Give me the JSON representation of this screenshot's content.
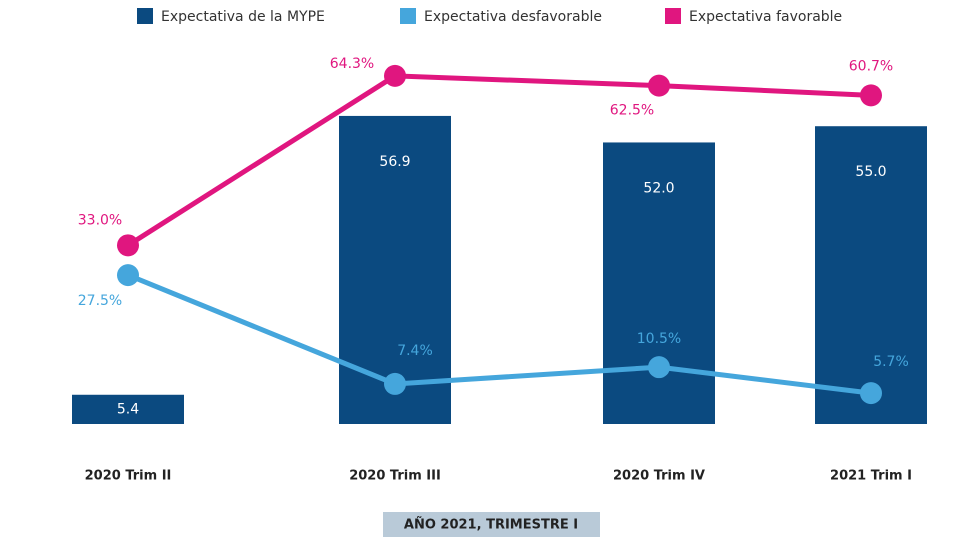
{
  "chart_data": {
    "type": "bar_line",
    "categories": [
      "2020 Trim II",
      "2020 Trim III",
      "2020 Trim IV",
      "2021 Trim I"
    ],
    "series": [
      {
        "name": "Expectativa de la MYPE",
        "type": "bar",
        "color": "#0b4a80",
        "values": [
          5.4,
          56.9,
          52,
          55
        ],
        "value_labels": [
          "5.4",
          "56.9",
          "52.0",
          "55.0"
        ]
      },
      {
        "name": "Expectativa desfavorable",
        "type": "line",
        "color": "#45a6dc",
        "values": [
          27.5,
          7.4,
          10.5,
          5.7
        ],
        "value_labels": [
          "27.5%",
          "7.4%",
          "10.5%",
          "5.7%"
        ]
      },
      {
        "name": "Expectativa favorable",
        "type": "line",
        "color": "#e0167f",
        "values": [
          33,
          64.3,
          62.5,
          60.7
        ],
        "value_labels": [
          "33.0%",
          "64.3%",
          "62.5%",
          "60.7%"
        ]
      }
    ],
    "ylim": [
      0,
      70
    ],
    "legend": "top",
    "footer": "AÑO 2021, TRIMESTRE I"
  }
}
